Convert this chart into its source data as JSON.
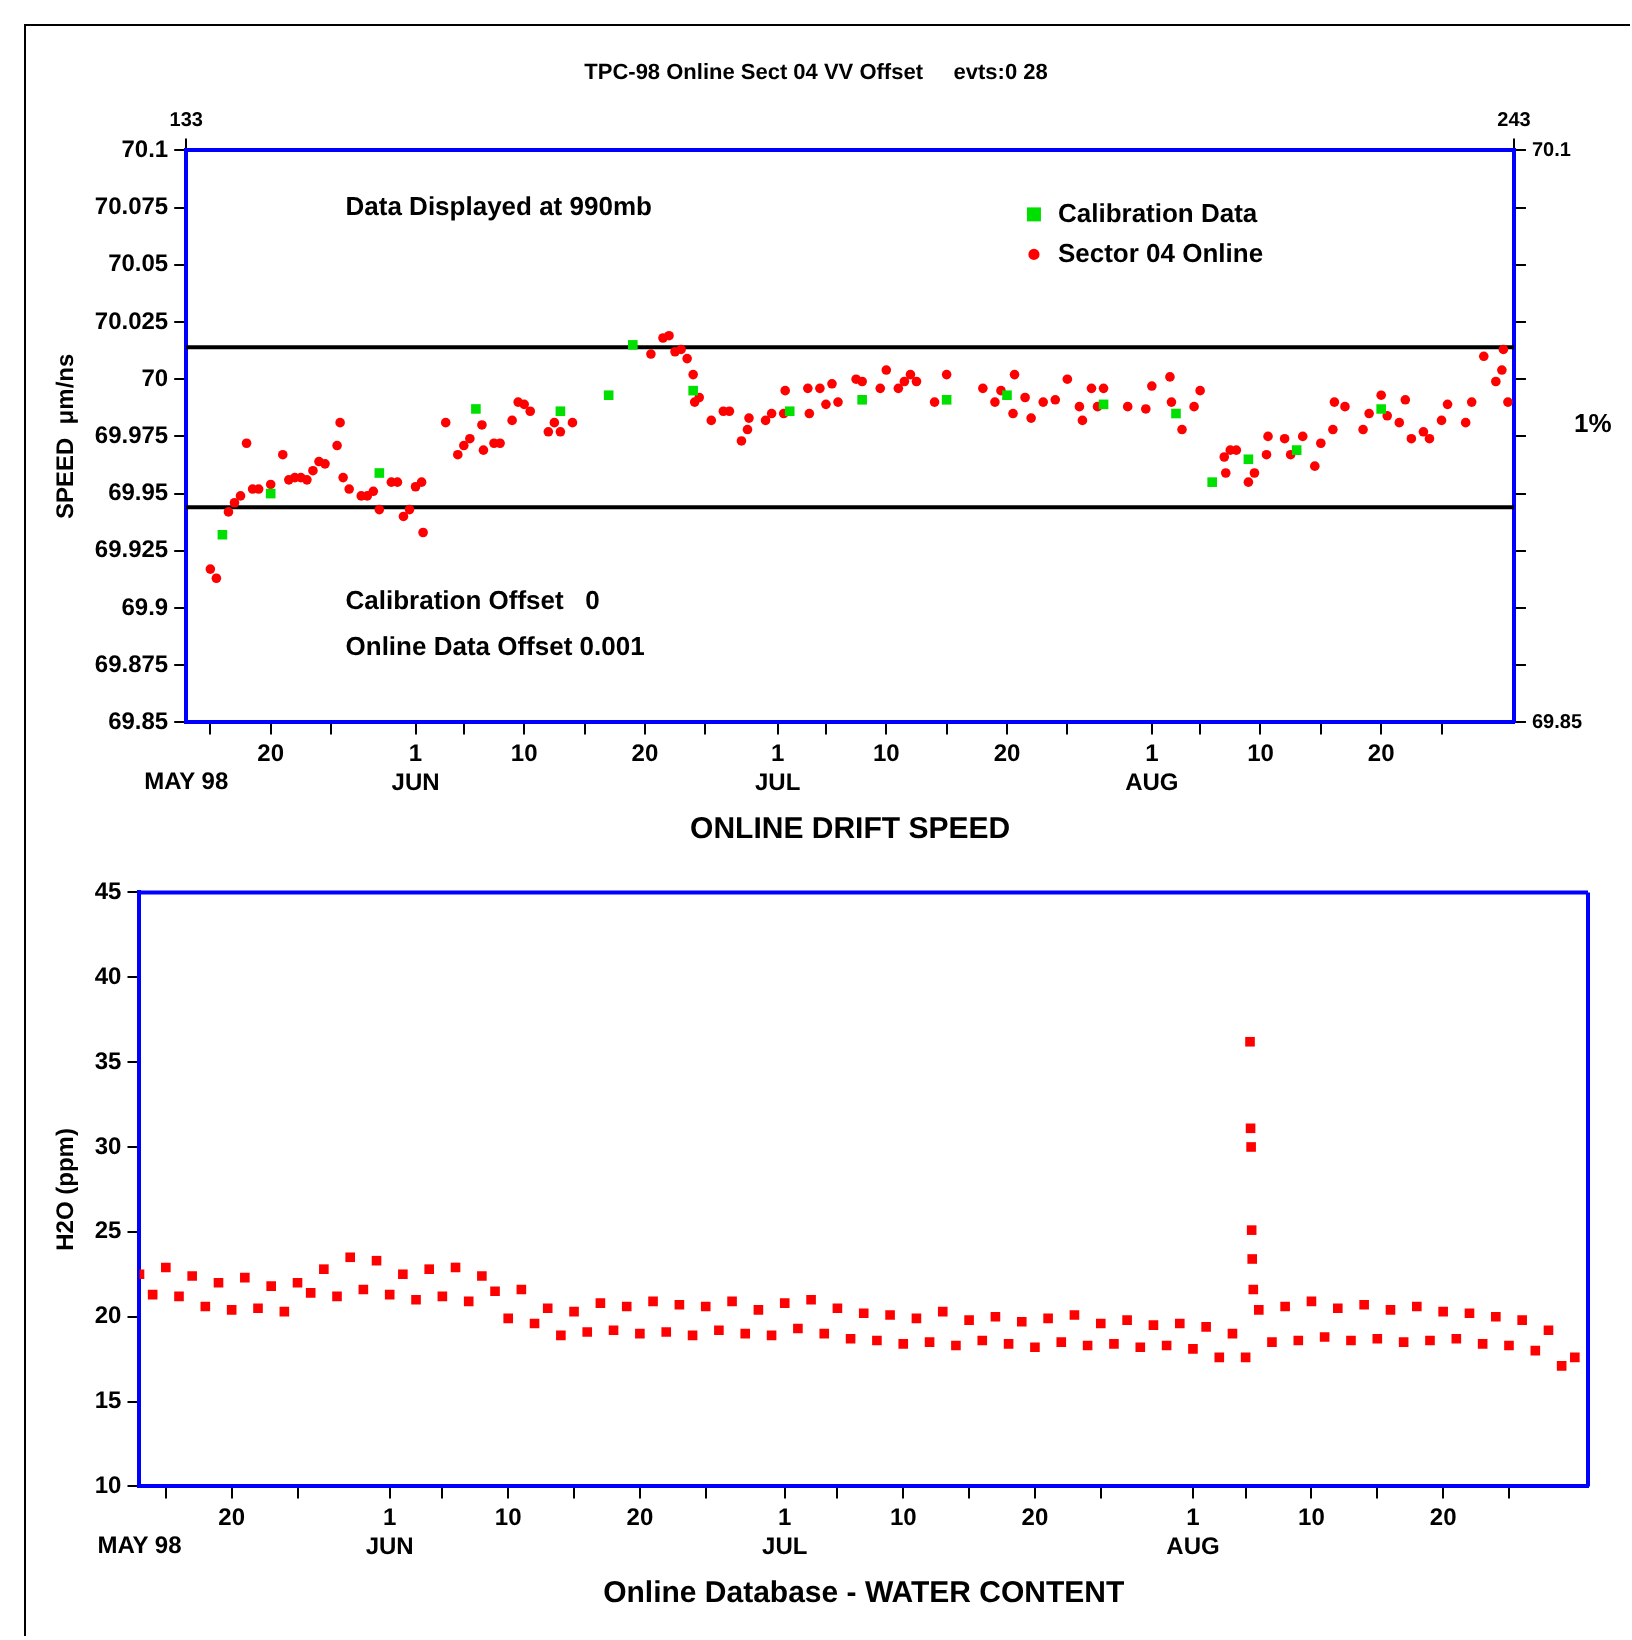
{
  "chart_data": [
    {
      "type": "scatter",
      "title": "TPC-98 Online Sect 04 VV Offset     evts:0 28",
      "xlabel": "ONLINE DRIFT SPEED",
      "ylabel": "SPEED  μm/ns",
      "xlim": [
        "--05-13",
        "--08-31"
      ],
      "xticks": [
        {
          "value": "--05-15",
          "label": null
        },
        {
          "value": "--05-20",
          "label": "20"
        },
        {
          "value": "--05-25",
          "label": null
        },
        {
          "value": "--06-01",
          "label": "1\nJUN"
        },
        {
          "value": "--06-05",
          "label": null
        },
        {
          "value": "--06-10",
          "label": "10"
        },
        {
          "value": "--06-15",
          "label": null
        },
        {
          "value": "--06-20",
          "label": "20"
        },
        {
          "value": "--06-25",
          "label": null
        },
        {
          "value": "--07-01",
          "label": "1\nJUL"
        },
        {
          "value": "--07-05",
          "label": null
        },
        {
          "value": "--07-10",
          "label": "10"
        },
        {
          "value": "--07-15",
          "label": null
        },
        {
          "value": "--07-20",
          "label": "20"
        },
        {
          "value": "--07-25",
          "label": null
        },
        {
          "value": "--08-01",
          "label": "1\nAUG"
        },
        {
          "value": "--08-05",
          "label": null
        },
        {
          "value": "--08-10",
          "label": "10"
        },
        {
          "value": "--08-15",
          "label": null
        },
        {
          "value": "--08-20",
          "label": "20"
        },
        {
          "value": "--08-25",
          "label": null
        }
      ],
      "x2lim": [
        133,
        243
      ],
      "x2ticks": [
        133,
        243
      ],
      "ylim": [
        69.85,
        70.1
      ],
      "yticks": [
        70.1,
        70.075,
        70.05,
        70.025,
        70,
        69.975,
        69.95,
        69.925,
        69.9,
        69.875,
        69.85
      ],
      "y2lim": [
        69.85,
        70.1
      ],
      "y2ticks": [
        70.1,
        {
          "value": 70.075,
          "label": null
        },
        {
          "value": 70.05,
          "label": null
        },
        {
          "value": 70.025,
          "label": null
        },
        {
          "value": 70,
          "label": null
        },
        {
          "value": 69.975,
          "label": null
        },
        {
          "value": 69.95,
          "label": null
        },
        {
          "value": 69.925,
          "label": null
        },
        {
          "value": 69.9,
          "label": null
        },
        {
          "value": 69.875,
          "label": null
        },
        69.85
      ],
      "grid": false,
      "legend": "top right",
      "ref_lines": [
        {
          "axis": "y",
          "value": 70.014,
          "color": "#000000"
        },
        {
          "axis": "y",
          "value": 69.944,
          "color": "#000000"
        }
      ],
      "annotations": [
        "Data Displayed at 990mb",
        "Calibration Offset   0",
        "Online Data Offset 0.001",
        "1%",
        "MAY 98"
      ],
      "series": [
        {
          "name": "Calibration Data",
          "color": "#00e000",
          "marker": "square",
          "x": [
            "--05-16",
            "--05-20",
            "--05-29",
            "--06-06",
            "--06-13",
            "--06-17",
            "--06-19",
            "--06-24",
            "--07-02",
            "--07-08",
            "--07-15",
            "--07-20",
            "--07-28",
            "--08-03",
            "--08-06",
            "--08-09",
            "--08-13",
            "--08-20"
          ],
          "values": [
            69.932,
            69.95,
            69.959,
            69.987,
            69.986,
            69.993,
            70.015,
            69.995,
            69.986,
            69.991,
            69.991,
            69.993,
            69.989,
            69.985,
            69.955,
            69.965,
            69.969,
            69.987
          ]
        },
        {
          "name": "Sector 04 Online",
          "color": "#ff0000",
          "marker": "circle",
          "x": [
            "--05-15",
            "--05-15T12:00",
            "--05-16",
            "--05-16T12:00",
            "--05-17",
            "--05-17T12:00",
            "--05-18",
            "--05-18T12:00",
            "--05-19",
            "--05-20",
            "--05-21",
            "--05-21T12:00",
            "--05-22",
            "--05-22T12:00",
            "--05-23",
            "--05-23T12:00",
            "--05-24",
            "--05-24T12:00",
            "--05-25T12:00",
            "--05-25T18:00",
            "--05-26",
            "--05-26T12:00",
            "--05-27T12:00",
            "--05-28",
            "--05-28T12:00",
            "--05-29",
            "--05-30",
            "--05-30T12:00",
            "--05-31",
            "--05-31T12:00",
            "--06-01",
            "--06-01T12:00",
            "--06-01T15:00",
            "--06-03T12:00",
            "--06-04T12:00",
            "--06-05",
            "--06-05T12:00",
            "--06-06T12:00",
            "--06-06T15:00",
            "--06-07T12:00",
            "--06-08",
            "--06-09",
            "--06-09T12:00",
            "--06-10",
            "--06-10T12:00",
            "--06-12",
            "--06-12T12:00",
            "--06-13",
            "--06-14",
            "--06-20T12:00",
            "--06-21T12:00",
            "--06-22",
            "--06-22T12:00",
            "--06-23",
            "--06-23T12:00",
            "--06-24",
            "--06-24T03:00",
            "--06-24T12:00",
            "--06-25T12:00",
            "--06-26T12:00",
            "--06-27",
            "--06-28",
            "--06-28T12:00",
            "--06-28T15:00",
            "--06-30",
            "--06-30T12:00",
            "--07-01T12:00",
            "--07-01T15:00",
            "--07-03T12:00",
            "--07-03T15:00",
            "--07-04T12:00",
            "--07-05",
            "--07-05T12:00",
            "--07-06",
            "--07-07T12:00",
            "--07-08",
            "--07-09T12:00",
            "--07-10",
            "--07-11",
            "--07-11T12:00",
            "--07-12",
            "--07-12T12:00",
            "--07-14",
            "--07-15",
            "--07-18",
            "--07-19",
            "--07-19T12:00",
            "--07-20T12:00",
            "--07-20T15:00",
            "--07-21T12:00",
            "--07-22",
            "--07-23",
            "--07-24",
            "--07-25",
            "--07-26",
            "--07-26T06:00",
            "--07-27",
            "--07-27T12:00",
            "--07-28",
            "--07-30",
            "--07-31T12:00",
            "--08-01",
            "--08-02T12:00",
            "--08-02T15:00",
            "--08-03T12:00",
            "--08-04T12:00",
            "--08-05",
            "--08-07",
            "--08-07T03:00",
            "--08-07T12:00",
            "--08-08",
            "--08-09",
            "--08-09T12:00",
            "--08-10T12:00",
            "--08-10T15:00",
            "--08-12",
            "--08-12T12:00",
            "--08-13T12:00",
            "--08-14T12:00",
            "--08-15",
            "--08-16",
            "--08-16T03:00",
            "--08-17",
            "--08-18T12:00",
            "--08-19",
            "--08-20",
            "--08-20T12:00",
            "--08-21T12:00",
            "--08-22",
            "--08-22T12:00",
            "--08-23T12:00",
            "--08-24",
            "--08-25",
            "--08-25T12:00",
            "--08-27",
            "--08-27T12:00",
            "--08-28T12:00",
            "--08-29T12:00",
            "--08-30",
            "--08-30T03:00",
            "--08-30T12:00"
          ],
          "values": [
            69.917,
            69.913,
            null,
            69.942,
            69.946,
            69.949,
            69.972,
            69.952,
            69.952,
            69.954,
            69.967,
            69.956,
            69.957,
            69.957,
            69.956,
            69.96,
            69.964,
            69.963,
            69.971,
            69.981,
            69.957,
            69.952,
            69.949,
            69.949,
            69.951,
            69.943,
            69.955,
            69.955,
            69.94,
            69.943,
            69.953,
            69.955,
            69.933,
            69.981,
            69.967,
            69.971,
            69.974,
            69.98,
            69.969,
            69.972,
            69.972,
            69.982,
            69.99,
            69.989,
            69.986,
            69.977,
            69.981,
            69.977,
            69.981,
            70.011,
            70.018,
            70.019,
            70.012,
            70.013,
            70.009,
            70.002,
            69.99,
            69.992,
            69.982,
            69.986,
            69.986,
            69.973,
            69.978,
            69.983,
            69.982,
            69.985,
            69.985,
            69.995,
            69.996,
            69.985,
            69.996,
            69.989,
            69.998,
            69.99,
            70.0,
            69.999,
            69.996,
            70.004,
            69.996,
            69.999,
            70.002,
            69.999,
            69.99,
            70.002,
            69.996,
            69.99,
            69.995,
            69.985,
            70.002,
            69.992,
            69.983,
            69.99,
            69.991,
            70.0,
            69.988,
            69.982,
            69.996,
            69.988,
            69.996,
            69.988,
            69.987,
            69.997,
            70.001,
            69.99,
            69.978,
            69.988,
            69.995,
            69.966,
            69.959,
            69.969,
            69.969,
            69.955,
            69.959,
            69.967,
            69.975,
            69.974,
            69.967,
            69.975,
            69.962,
            69.972,
            69.978,
            69.99,
            69.988,
            69.978,
            69.985,
            69.993,
            69.984,
            69.981,
            69.991,
            69.974,
            69.977,
            69.974,
            69.982,
            69.989,
            69.981,
            69.99,
            70.01,
            69.999,
            70.004,
            70.013,
            69.99
          ]
        }
      ]
    },
    {
      "type": "scatter",
      "xlabel": "Online Database - WATER CONTENT",
      "ylabel": "H2O (ppm)",
      "xlim": [
        "--05-13",
        "--08-31"
      ],
      "xticks": [
        {
          "value": "--05-15",
          "label": null
        },
        {
          "value": "--05-20",
          "label": "20"
        },
        {
          "value": "--05-25",
          "label": null
        },
        {
          "value": "--06-01",
          "label": "1\nJUN"
        },
        {
          "value": "--06-05",
          "label": null
        },
        {
          "value": "--06-10",
          "label": "10"
        },
        {
          "value": "--06-15",
          "label": null
        },
        {
          "value": "--06-20",
          "label": "20"
        },
        {
          "value": "--06-25",
          "label": null
        },
        {
          "value": "--07-01",
          "label": "1\nJUL"
        },
        {
          "value": "--07-05",
          "label": null
        },
        {
          "value": "--07-10",
          "label": "10"
        },
        {
          "value": "--07-15",
          "label": null
        },
        {
          "value": "--07-20",
          "label": "20"
        },
        {
          "value": "--07-25",
          "label": null
        },
        {
          "value": "--08-01",
          "label": "1\nAUG"
        },
        {
          "value": "--08-05",
          "label": null
        },
        {
          "value": "--08-10",
          "label": "10"
        },
        {
          "value": "--08-15",
          "label": null
        },
        {
          "value": "--08-20",
          "label": "20"
        },
        {
          "value": "--08-25",
          "label": null
        }
      ],
      "ylim": [
        10,
        45
      ],
      "yticks": [
        10,
        15,
        20,
        25,
        30,
        35,
        40,
        45
      ],
      "grid": false,
      "annotations": [
        "MAY 98"
      ],
      "series": [
        {
          "color": "#ff0000",
          "marker": "square",
          "x": [
            "--05-13",
            "--05-14",
            "--05-15",
            "--05-16",
            "--05-17",
            "--05-18",
            "--05-19",
            "--05-20",
            "--05-21",
            "--05-22",
            "--05-23",
            "--05-24",
            "--05-25",
            "--05-26",
            "--05-27",
            "--05-28",
            "--05-29",
            "--05-30",
            "--05-31",
            "--06-01",
            "--06-02",
            "--06-03",
            "--06-04",
            "--06-05",
            "--06-06",
            "--06-07",
            "--06-08",
            "--06-09",
            "--06-10",
            "--06-11",
            "--06-12",
            "--06-13",
            "--06-14",
            "--06-15",
            "--06-16",
            "--06-17",
            "--06-18",
            "--06-19",
            "--06-20",
            "--06-21",
            "--06-22",
            "--06-23",
            "--06-24",
            "--06-25",
            "--06-26",
            "--06-27",
            "--06-28",
            "--06-29",
            "--06-30",
            "--07-01",
            "--07-02",
            "--07-03",
            "--07-04",
            "--07-05",
            "--07-06",
            "--07-07",
            "--07-08",
            "--07-09",
            "--07-10",
            "--07-11",
            "--07-12",
            "--07-13",
            "--07-14",
            "--07-15",
            "--07-16",
            "--07-17",
            "--07-18",
            "--07-19",
            "--07-20",
            "--07-21",
            "--07-22",
            "--07-23",
            "--07-24",
            "--07-25",
            "--07-26",
            "--07-27",
            "--07-28",
            "--07-29",
            "--07-30",
            "--07-31",
            "--08-01",
            "--08-02",
            "--08-03",
            "--08-04",
            "--08-05",
            "--08-06",
            "--08-07",
            "--08-08",
            "--08-09",
            "--08-10",
            "--08-11",
            "--08-12",
            "--08-13",
            "--08-14",
            "--08-15",
            "--08-16",
            "--08-17",
            "--08-18",
            "--08-19",
            "--08-20",
            "--08-21",
            "--08-22",
            "--08-23",
            "--08-24",
            "--08-25",
            "--08-26",
            "--08-27",
            "--08-28",
            "--08-29",
            "--08-30",
            "--08-05T08:00",
            "--08-05T09:00",
            "--08-05T10:00",
            "--08-05T11:00",
            "--08-05T12:00",
            "--08-05T14:00"
          ],
          "values": [
            22.5,
            21.3,
            22.9,
            21.2,
            22.4,
            20.6,
            22.0,
            20.4,
            22.3,
            20.5,
            21.8,
            20.3,
            22.0,
            21.4,
            22.8,
            21.2,
            23.5,
            21.6,
            23.3,
            21.3,
            22.5,
            21.0,
            22.8,
            21.2,
            22.9,
            20.9,
            22.4,
            21.5,
            19.9,
            21.6,
            19.6,
            20.5,
            18.9,
            20.3,
            19.1,
            20.8,
            19.2,
            20.6,
            19.0,
            20.9,
            19.1,
            20.7,
            18.9,
            20.6,
            19.2,
            20.9,
            19.0,
            20.4,
            18.9,
            20.8,
            19.3,
            21.0,
            19.0,
            20.5,
            18.7,
            20.2,
            18.6,
            20.1,
            18.4,
            19.9,
            18.5,
            20.3,
            18.3,
            19.8,
            18.6,
            20.0,
            18.4,
            19.7,
            18.2,
            19.9,
            18.5,
            20.1,
            18.3,
            19.6,
            18.4,
            19.8,
            18.2,
            19.5,
            18.3,
            19.6,
            18.1,
            19.4,
            17.6,
            19.0,
            17.6,
            20.4,
            18.5,
            20.6,
            18.6,
            20.9,
            18.8,
            20.5,
            18.6,
            20.7,
            18.7,
            20.4,
            18.5,
            20.6,
            18.6,
            20.3,
            18.7,
            20.2,
            18.4,
            20.0,
            18.3,
            19.8,
            18.0,
            19.2,
            17.1,
            17.6,
            36.2,
            31.1,
            30.0,
            25.1,
            23.4,
            21.6
          ]
        }
      ]
    }
  ]
}
